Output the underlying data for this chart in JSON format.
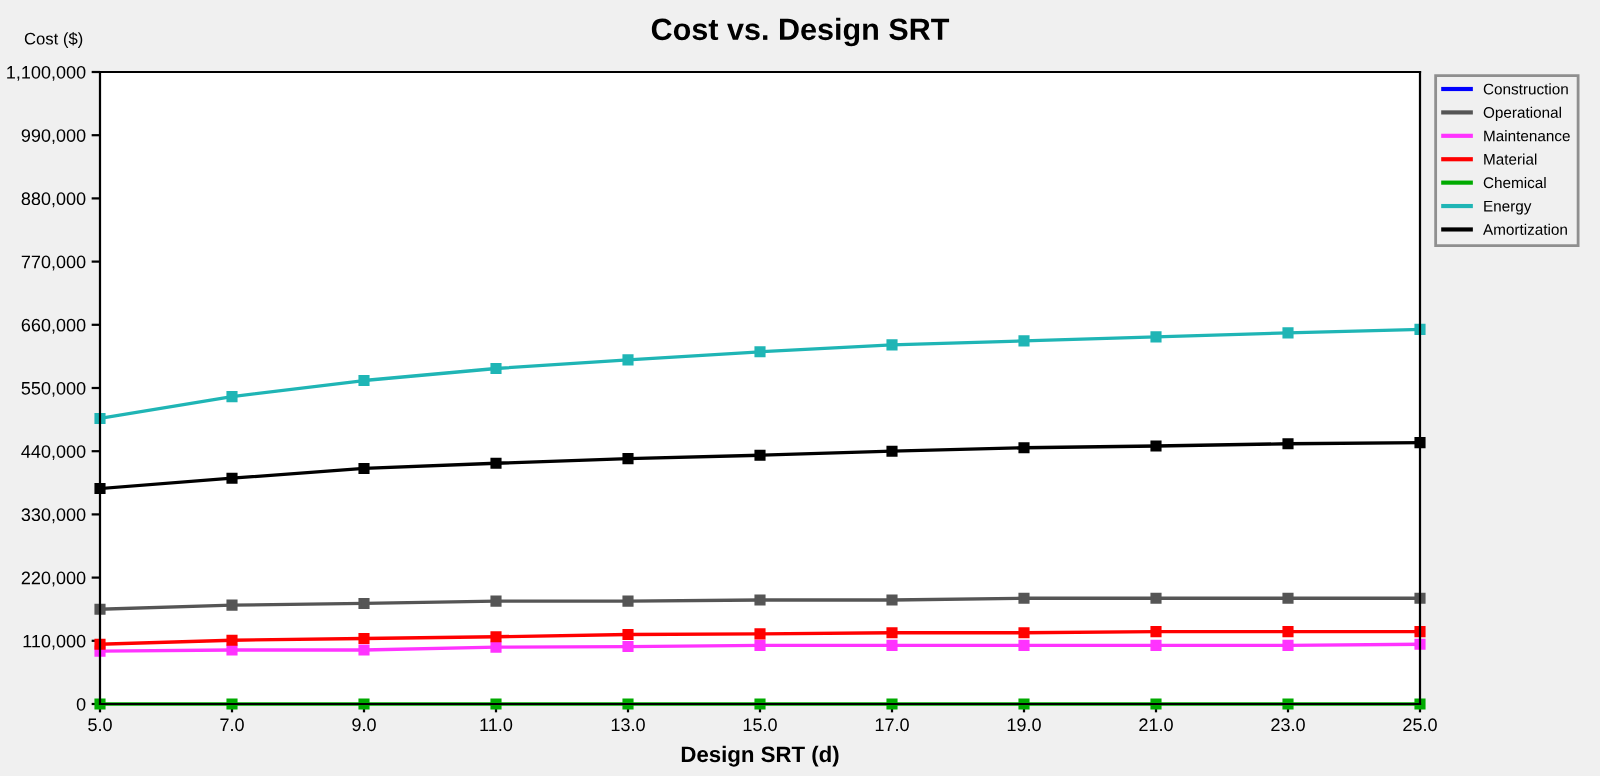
{
  "chart_data": {
    "type": "line",
    "title": "Cost vs. Design SRT",
    "xlabel": "Design SRT (d)",
    "ylabel": "Cost ($)",
    "x": [
      5,
      7,
      9,
      11,
      13,
      15,
      17,
      19,
      21,
      23,
      25
    ],
    "series": [
      {
        "name": "Construction",
        "color": "#0000ff",
        "values": [
          null,
          null,
          null,
          null,
          null,
          null,
          null,
          null,
          null,
          null,
          null
        ]
      },
      {
        "name": "Operational",
        "color": "#555555",
        "values": [
          165000,
          172000,
          175000,
          179000,
          179000,
          181000,
          181000,
          184000,
          184000,
          184000,
          184000
        ]
      },
      {
        "name": "Maintenance",
        "color": "#ff33ff",
        "values": [
          92000,
          94000,
          94000,
          99000,
          100000,
          102000,
          102000,
          102000,
          102000,
          102000,
          104000
        ]
      },
      {
        "name": "Material",
        "color": "#ff0000",
        "values": [
          104000,
          111000,
          114000,
          117000,
          121000,
          122000,
          124000,
          124000,
          126000,
          126000,
          126000
        ]
      },
      {
        "name": "Chemical",
        "color": "#00aa00",
        "values": [
          0,
          0,
          0,
          0,
          0,
          0,
          0,
          0,
          0,
          0,
          0
        ]
      },
      {
        "name": "Energy",
        "color": "#1fb5b5",
        "values": [
          497000,
          535000,
          563000,
          584000,
          599000,
          613000,
          625000,
          632000,
          639000,
          646000,
          652000
        ]
      },
      {
        "name": "Amortization",
        "color": "#000000",
        "values": [
          375000,
          393000,
          410000,
          419000,
          427000,
          433000,
          440000,
          446000,
          449000,
          453000,
          455000
        ]
      }
    ],
    "xlim": [
      5,
      25
    ],
    "ylim": [
      0,
      1100000
    ],
    "xticks": [
      {
        "value": 5,
        "label": "5.0"
      },
      {
        "value": 7,
        "label": "7.0"
      },
      {
        "value": 9,
        "label": "9.0"
      },
      {
        "value": 11,
        "label": "11.0"
      },
      {
        "value": 13,
        "label": "13.0"
      },
      {
        "value": 15,
        "label": "15.0"
      },
      {
        "value": 17,
        "label": "17.0"
      },
      {
        "value": 19,
        "label": "19.0"
      },
      {
        "value": 21,
        "label": "21.0"
      },
      {
        "value": 23,
        "label": "23.0"
      },
      {
        "value": 25,
        "label": "25.0"
      }
    ],
    "yticks": [
      0,
      {
        "value": 110000,
        "label": "110,000"
      },
      {
        "value": 220000,
        "label": "220,000"
      },
      {
        "value": 330000,
        "label": "330,000"
      },
      {
        "value": 440000,
        "label": "440,000"
      },
      {
        "value": 550000,
        "label": "550,000"
      },
      {
        "value": 660000,
        "label": "660,000"
      },
      {
        "value": 770000,
        "label": "770,000"
      },
      {
        "value": 880000,
        "label": "880,000"
      },
      {
        "value": 990000,
        "label": "990,000"
      },
      {
        "value": 1100000,
        "label": "1,100,000"
      }
    ],
    "grid": false,
    "legend": "right",
    "marker": "square",
    "line_style": "solid"
  }
}
